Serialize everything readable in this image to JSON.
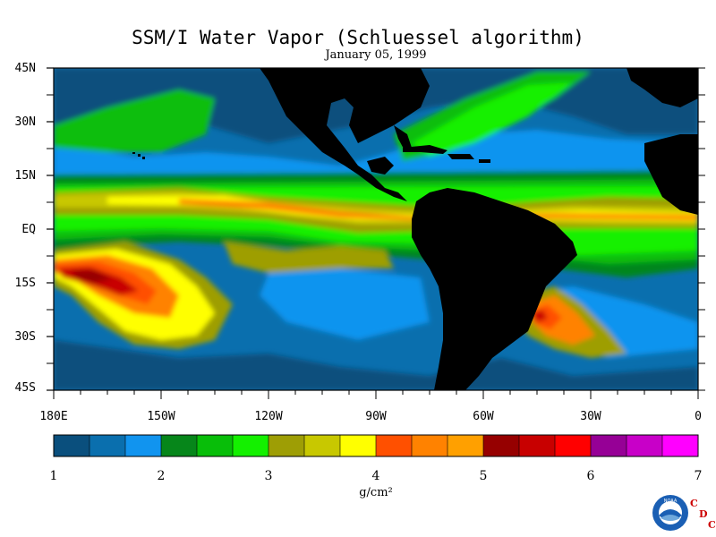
{
  "title": "SSM/I Water Vapor (Schluessel algorithm)",
  "date": "January 05, 1999",
  "lat_labels": [
    "45N",
    "30N",
    "15N",
    "EQ",
    "15S",
    "30S",
    "45S"
  ],
  "lon_labels": [
    "180E",
    "150W",
    "120W",
    "90W",
    "60W",
    "30W",
    "0"
  ],
  "colorbar": {
    "colors": [
      "#0a4f7d",
      "#0a6fae",
      "#1194ef",
      "#06861a",
      "#08be09",
      "#14f000",
      "#9e9e05",
      "#c8c800",
      "#ffff00",
      "#ff5000",
      "#ff8200",
      "#ffa000",
      "#960000",
      "#c80000",
      "#ff0000",
      "#960096",
      "#c800c8",
      "#ff00ff"
    ],
    "tick_labels": [
      "1",
      "2",
      "3",
      "4",
      "5",
      "6",
      "7"
    ],
    "units": "g/cm²"
  },
  "logo": {
    "name": "NOAA",
    "caption": "CDC"
  },
  "colors": {
    "land": "#000000",
    "background": "#ffffff"
  }
}
